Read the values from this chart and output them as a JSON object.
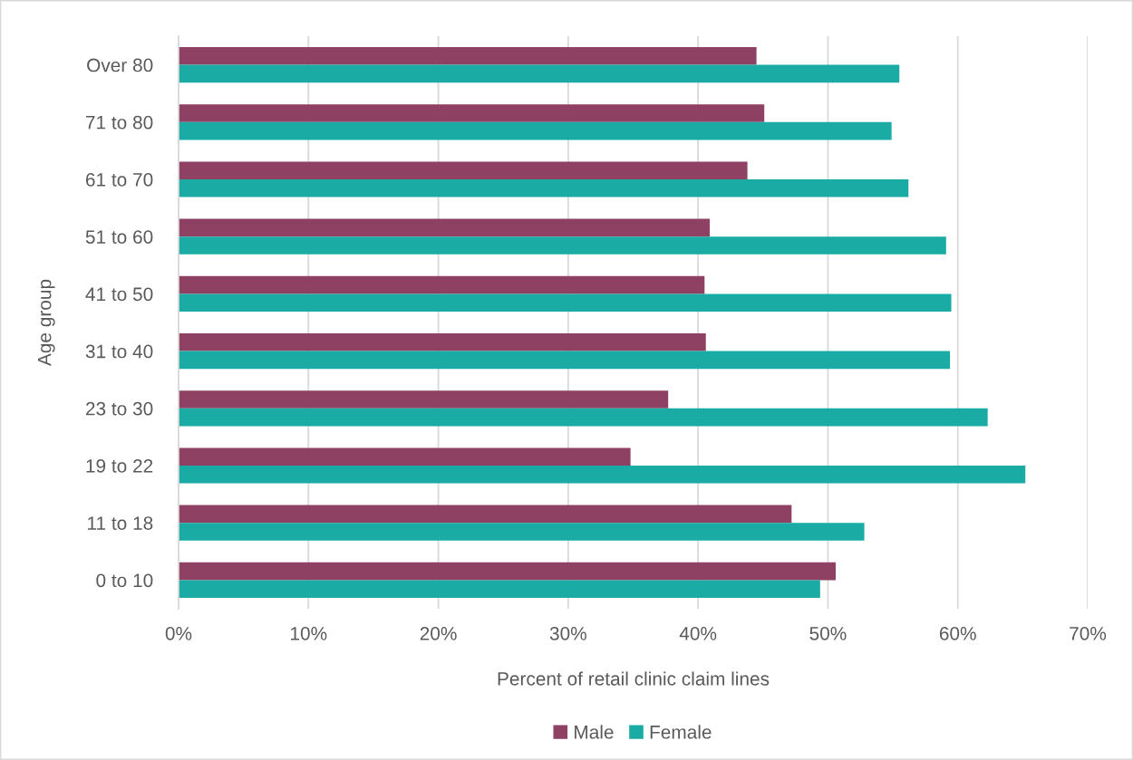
{
  "chart_data": {
    "type": "bar",
    "orientation": "horizontal",
    "xlabel": "Percent of retail clinic claim lines",
    "ylabel": "Age group",
    "categories": [
      "Over 80",
      "71 to 80",
      "61 to 70",
      "51 to 60",
      "41 to 50",
      "31 to 40",
      "23 to 30",
      "19 to 22",
      "11 to 18",
      "0 to 10"
    ],
    "series": [
      {
        "name": "Male",
        "color": "#8e4163",
        "values": [
          44.5,
          45.1,
          43.8,
          40.9,
          40.5,
          40.6,
          37.7,
          34.8,
          47.2,
          50.6
        ]
      },
      {
        "name": "Female",
        "color": "#1aaca4",
        "values": [
          55.5,
          54.9,
          56.2,
          59.1,
          59.5,
          59.4,
          62.3,
          65.2,
          52.8,
          49.4
        ]
      }
    ],
    "xlim": [
      0,
      70
    ],
    "xticks": [
      {
        "value": 0,
        "label": "0%"
      },
      {
        "value": 10,
        "label": "10%"
      },
      {
        "value": 20,
        "label": "20%"
      },
      {
        "value": 30,
        "label": "30%"
      },
      {
        "value": 40,
        "label": "40%"
      },
      {
        "value": 50,
        "label": "50%"
      },
      {
        "value": 60,
        "label": "60%"
      },
      {
        "value": 70,
        "label": "70%"
      }
    ],
    "grid": "x",
    "legend": "bottom"
  }
}
